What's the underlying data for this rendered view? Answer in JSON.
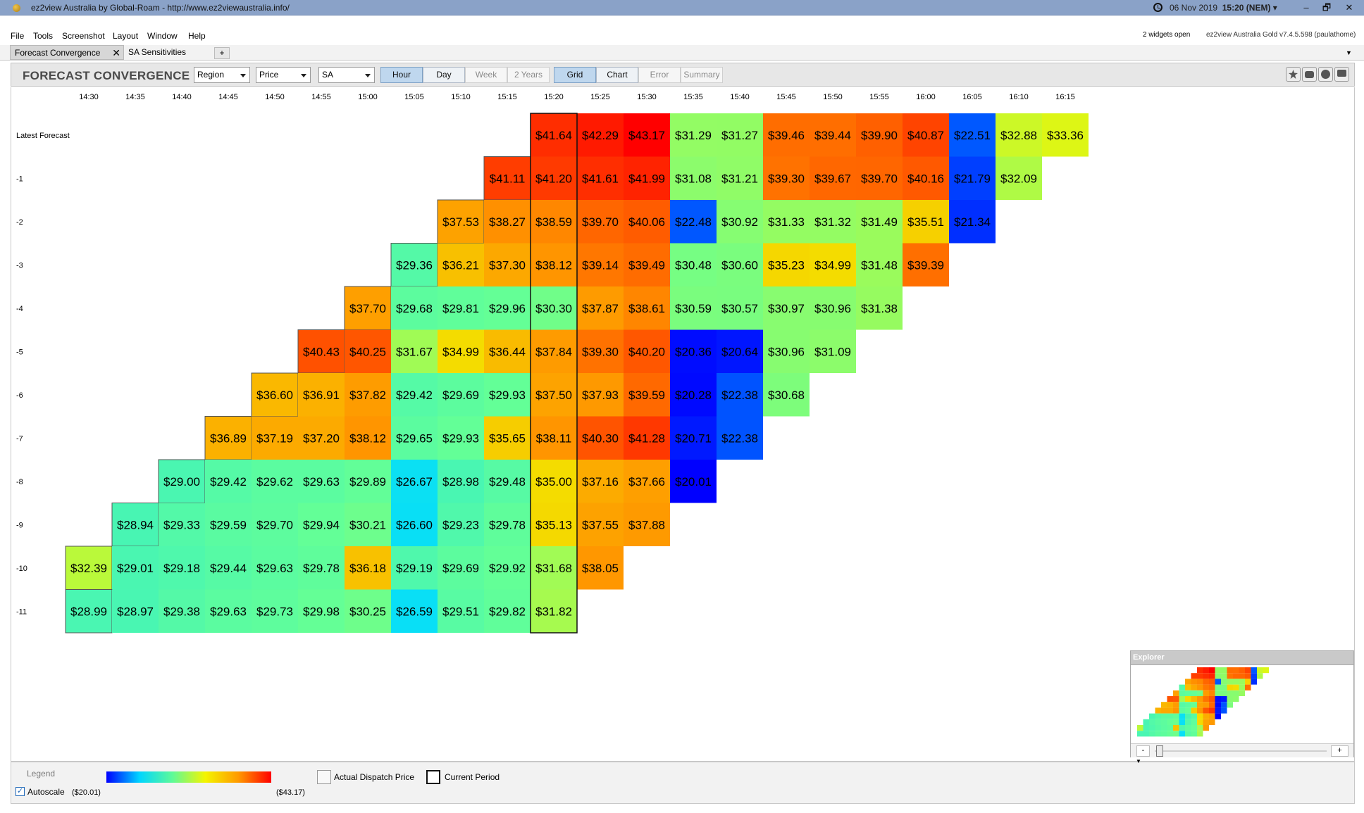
{
  "window": {
    "title": "ez2view Australia by Global-Roam - http://www.ez2viewaustralia.info/",
    "date": "06 Nov 2019",
    "time": "15:20",
    "zone": "(NEM)",
    "min": "–",
    "max": "🗗",
    "close": "✕"
  },
  "menu": [
    "File",
    "Tools",
    "Screenshot",
    "Layout",
    "Window",
    "Help"
  ],
  "status": {
    "widgets_open": "2 widgets open",
    "version": "ez2view Australia Gold v7.4.5.598 (paulathome)"
  },
  "tabs": [
    {
      "label": "Forecast Convergence",
      "close": "✕"
    },
    {
      "label": "SA Sensitivities"
    }
  ],
  "tab_add": "+",
  "toolbar": {
    "heading": "FORECAST CONVERGENCE",
    "dropdowns": [
      "Region",
      "Price",
      "SA"
    ],
    "range_buttons": [
      {
        "label": "Hour",
        "selected": true,
        "enabled": true
      },
      {
        "label": "Day",
        "selected": false,
        "enabled": true
      },
      {
        "label": "Week",
        "selected": false,
        "enabled": false
      },
      {
        "label": "2 Years",
        "selected": false,
        "enabled": false
      }
    ],
    "view_buttons": [
      {
        "label": "Grid",
        "selected": true,
        "enabled": true
      },
      {
        "label": "Chart",
        "selected": false,
        "enabled": true
      },
      {
        "label": "Error",
        "selected": false,
        "enabled": false
      },
      {
        "label": "Summary",
        "selected": false,
        "enabled": false
      }
    ],
    "icons": [
      "star-icon",
      "camera-icon",
      "help-icon",
      "comment-icon"
    ]
  },
  "grid": {
    "columns": [
      "14:30",
      "14:35",
      "14:40",
      "14:45",
      "14:50",
      "14:55",
      "15:00",
      "15:05",
      "15:10",
      "15:15",
      "15:20",
      "15:25",
      "15:30",
      "15:35",
      "15:40",
      "15:45",
      "15:50",
      "15:55",
      "16:00",
      "16:05",
      "16:10",
      "16:15"
    ],
    "rows": [
      "Latest Forecast",
      "-1",
      "-2",
      "-3",
      "-4",
      "-5",
      "-6",
      "-7",
      "-8",
      "-9",
      "-10",
      "-11"
    ],
    "current_period": "15:20",
    "color_scale": {
      "min": 20.01,
      "max": 43.17
    },
    "values": [
      [
        null,
        null,
        null,
        null,
        null,
        null,
        null,
        null,
        null,
        null,
        41.64,
        42.29,
        43.17,
        31.29,
        31.27,
        39.46,
        39.44,
        39.9,
        40.87,
        22.51,
        32.88,
        33.36
      ],
      [
        null,
        null,
        null,
        null,
        null,
        null,
        null,
        null,
        null,
        41.11,
        41.2,
        41.61,
        41.99,
        31.08,
        31.21,
        39.3,
        39.67,
        39.7,
        40.16,
        21.79,
        32.09,
        null
      ],
      [
        null,
        null,
        null,
        null,
        null,
        null,
        null,
        null,
        37.53,
        38.27,
        38.59,
        39.7,
        40.06,
        22.48,
        30.92,
        31.33,
        31.32,
        31.49,
        35.51,
        21.34,
        null,
        null
      ],
      [
        null,
        null,
        null,
        null,
        null,
        null,
        null,
        29.36,
        36.21,
        37.3,
        38.12,
        39.14,
        39.49,
        30.48,
        30.6,
        35.23,
        34.99,
        31.48,
        39.39,
        null,
        null,
        null
      ],
      [
        null,
        null,
        null,
        null,
        null,
        null,
        37.7,
        29.68,
        29.81,
        29.96,
        30.3,
        37.87,
        38.61,
        30.59,
        30.57,
        30.97,
        30.96,
        31.38,
        null,
        null,
        null,
        null
      ],
      [
        null,
        null,
        null,
        null,
        null,
        40.43,
        40.25,
        31.67,
        34.99,
        36.44,
        37.84,
        39.3,
        40.2,
        20.36,
        20.64,
        30.96,
        31.09,
        null,
        null,
        null,
        null,
        null
      ],
      [
        null,
        null,
        null,
        null,
        36.6,
        36.91,
        37.82,
        29.42,
        29.69,
        29.93,
        37.5,
        37.93,
        39.59,
        20.28,
        22.38,
        30.68,
        null,
        null,
        null,
        null,
        null,
        null
      ],
      [
        null,
        null,
        null,
        36.89,
        37.19,
        37.2,
        38.12,
        29.65,
        29.93,
        35.65,
        38.11,
        40.3,
        41.28,
        20.71,
        22.38,
        null,
        null,
        null,
        null,
        null,
        null,
        null
      ],
      [
        null,
        null,
        29.0,
        29.42,
        29.62,
        29.63,
        29.89,
        26.67,
        28.98,
        29.48,
        35.0,
        37.16,
        37.66,
        20.01,
        null,
        null,
        null,
        null,
        null,
        null,
        null,
        null
      ],
      [
        null,
        28.94,
        29.33,
        29.59,
        29.7,
        29.94,
        30.21,
        26.6,
        29.23,
        29.78,
        35.13,
        37.55,
        37.88,
        null,
        null,
        null,
        null,
        null,
        null,
        null,
        null,
        null
      ],
      [
        32.39,
        29.01,
        29.18,
        29.44,
        29.63,
        29.78,
        36.18,
        29.19,
        29.69,
        29.92,
        31.68,
        38.05,
        null,
        null,
        null,
        null,
        null,
        null,
        null,
        null,
        null,
        null
      ],
      [
        28.99,
        28.97,
        29.38,
        29.63,
        29.73,
        29.98,
        30.25,
        26.59,
        29.51,
        29.82,
        31.82,
        null,
        null,
        null,
        null,
        null,
        null,
        null,
        null,
        null,
        null,
        null
      ]
    ]
  },
  "legend": {
    "title": "Legend",
    "autoscale_label": "Autoscale",
    "autoscale_checked": "✓",
    "min_label": "($20.01)",
    "max_label": "($43.17)",
    "actual_dispatch_label": "Actual Dispatch Price",
    "current_period_label": "Current Period"
  },
  "explorer": {
    "title": "Explorer",
    "zoom_out": "-",
    "zoom_in": "+"
  }
}
